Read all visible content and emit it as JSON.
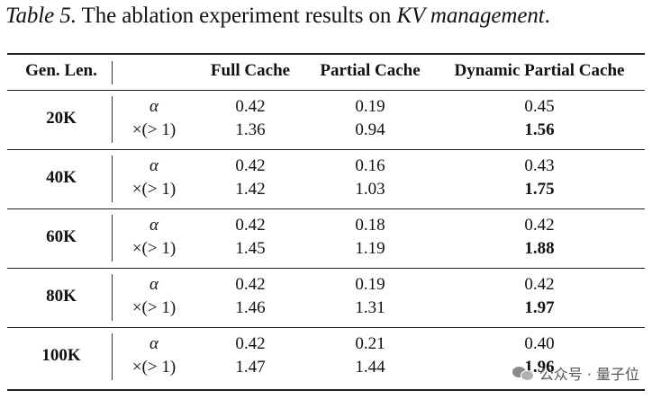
{
  "caption": {
    "prefix": "Table 5.",
    "text": " The ablation experiment results on ",
    "emph": "KV management",
    "suffix": "."
  },
  "headers": {
    "gen_len": "Gen. Len.",
    "full": "Full Cache",
    "partial": "Partial Cache",
    "dynamic": "Dynamic Partial Cache"
  },
  "metric_labels": {
    "alpha": "α",
    "speedup": "×(> 1)"
  },
  "rows": [
    {
      "len": "20K",
      "alpha": [
        "0.42",
        "0.19",
        "0.45"
      ],
      "speedup": [
        "1.36",
        "0.94",
        "1.56"
      ]
    },
    {
      "len": "40K",
      "alpha": [
        "0.42",
        "0.16",
        "0.43"
      ],
      "speedup": [
        "1.42",
        "1.03",
        "1.75"
      ]
    },
    {
      "len": "60K",
      "alpha": [
        "0.42",
        "0.18",
        "0.42"
      ],
      "speedup": [
        "1.45",
        "1.19",
        "1.88"
      ]
    },
    {
      "len": "80K",
      "alpha": [
        "0.42",
        "0.19",
        "0.42"
      ],
      "speedup": [
        "1.46",
        "1.31",
        "1.97"
      ]
    },
    {
      "len": "100K",
      "alpha": [
        "0.42",
        "0.21",
        "0.40"
      ],
      "speedup": [
        "1.47",
        "1.44",
        "1.96"
      ]
    }
  ],
  "watermark": {
    "text": "公众号 · 量子位",
    "icon": "wechat-icon"
  }
}
